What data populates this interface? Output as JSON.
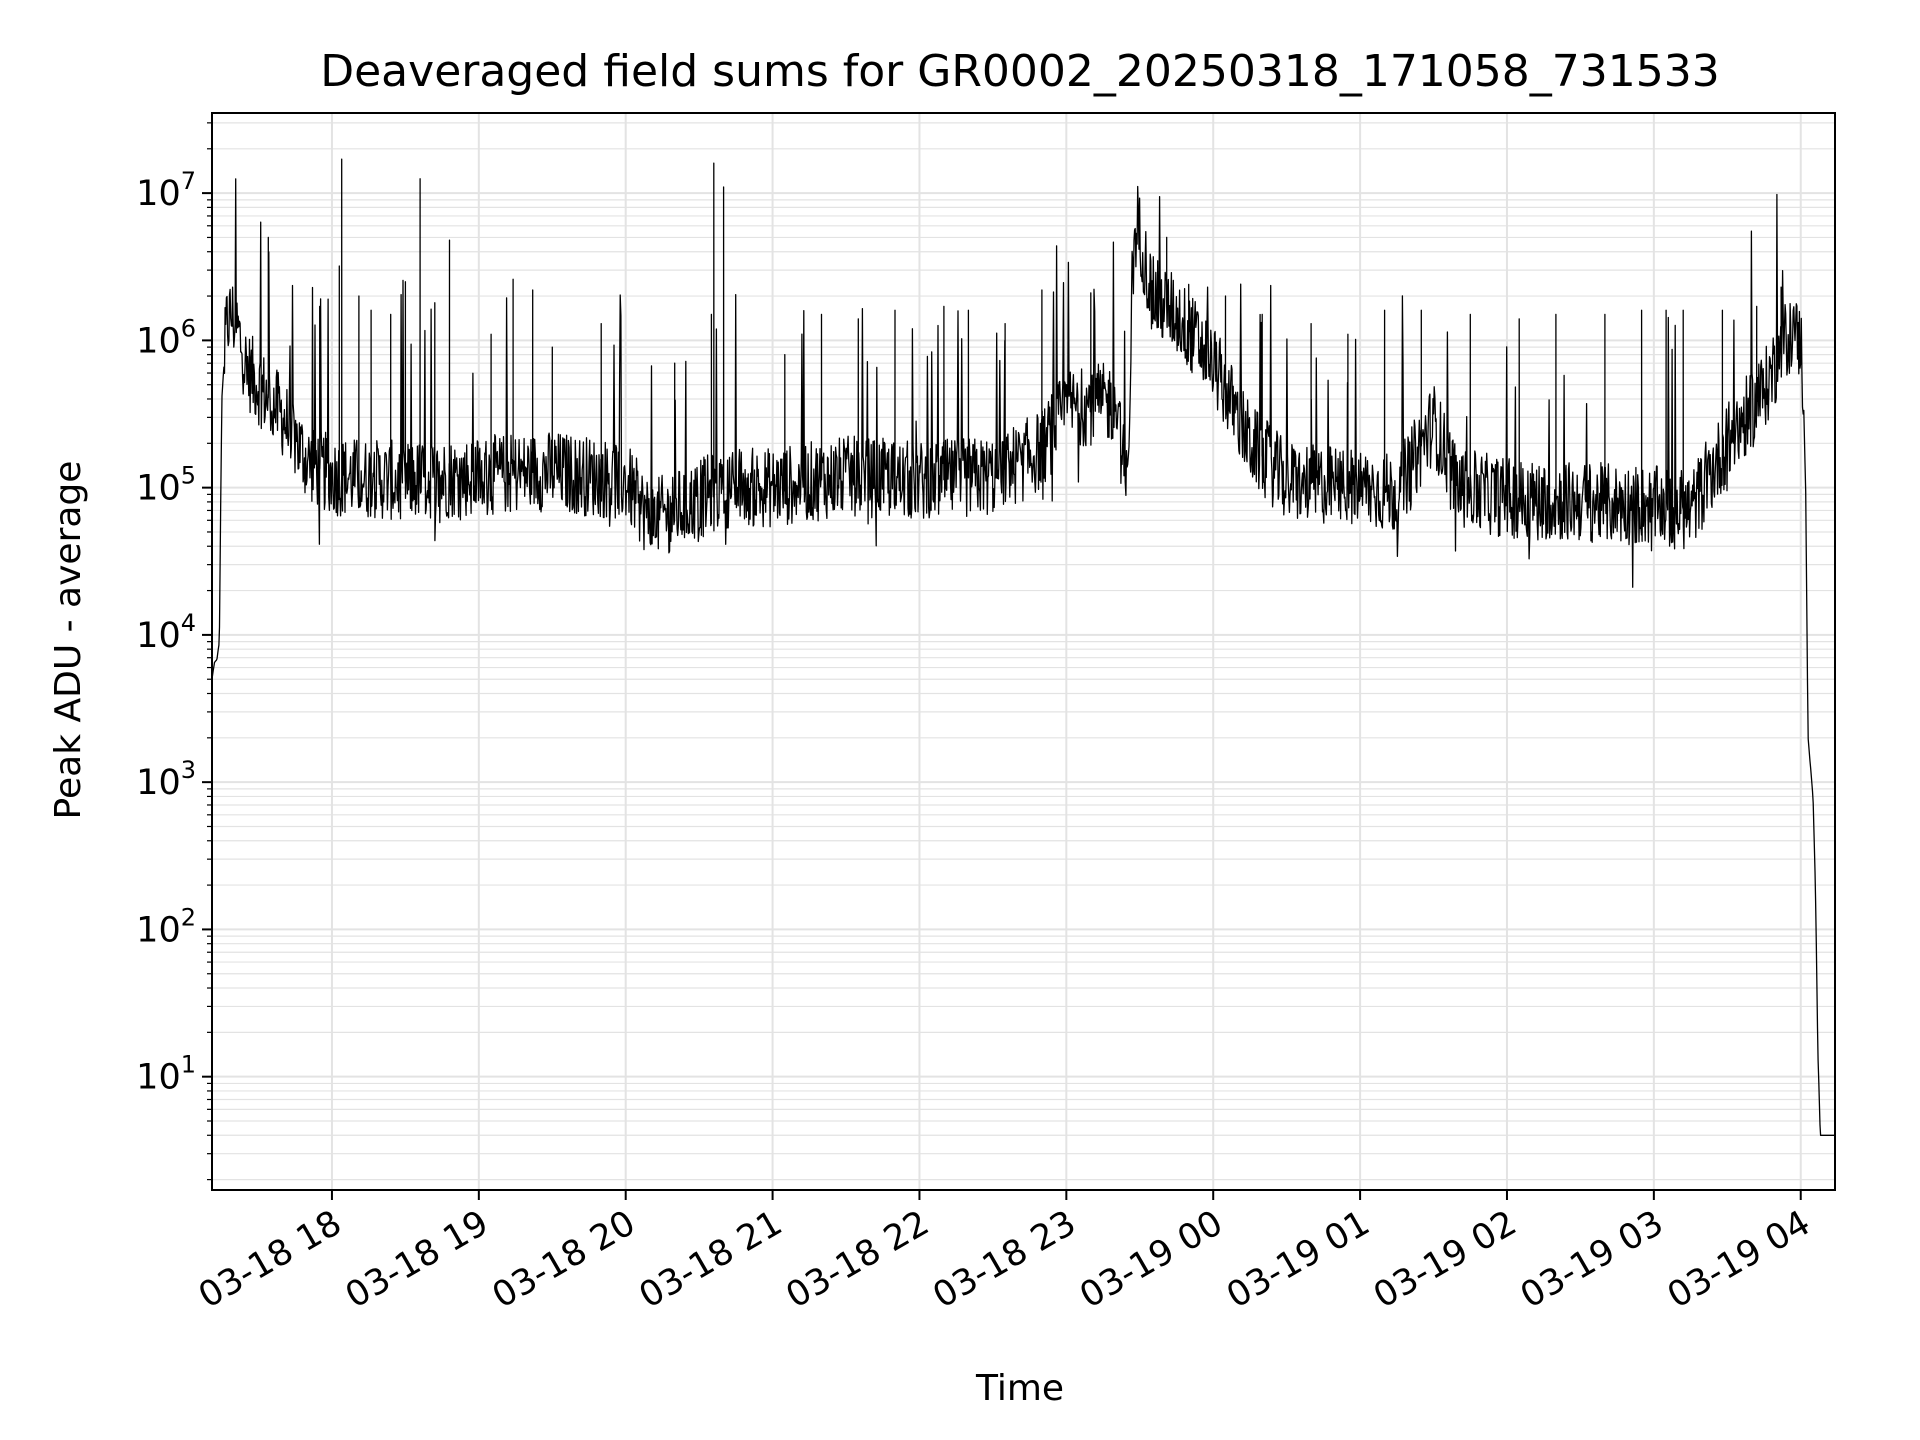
{
  "chart_data": {
    "type": "line",
    "title": "Deaveraged field sums for GR0002_20250318_171058_731533",
    "xlabel": "Time",
    "ylabel": "Peak ADU - average",
    "yscale": "log",
    "ylim": [
      1.7,
      35000000
    ],
    "xlim": [
      "2025-03-18 17:11",
      "2025-03-19 04:14"
    ],
    "grid": true,
    "line_color": "#000000",
    "grid_color": "#e3e3e3",
    "x_ticks": [
      {
        "t": "2025-03-18 18:00",
        "label": "03-18 18"
      },
      {
        "t": "2025-03-18 19:00",
        "label": "03-18 19"
      },
      {
        "t": "2025-03-18 20:00",
        "label": "03-18 20"
      },
      {
        "t": "2025-03-18 21:00",
        "label": "03-18 21"
      },
      {
        "t": "2025-03-18 22:00",
        "label": "03-18 22"
      },
      {
        "t": "2025-03-18 23:00",
        "label": "03-18 23"
      },
      {
        "t": "2025-03-19 00:00",
        "label": "03-19 00"
      },
      {
        "t": "2025-03-19 01:00",
        "label": "03-19 01"
      },
      {
        "t": "2025-03-19 02:00",
        "label": "03-19 02"
      },
      {
        "t": "2025-03-19 03:00",
        "label": "03-19 03"
      },
      {
        "t": "2025-03-19 04:00",
        "label": "03-19 04"
      }
    ],
    "y_ticks": [
      {
        "value": 10,
        "base": "10",
        "exp": "1"
      },
      {
        "value": 100,
        "base": "10",
        "exp": "2"
      },
      {
        "value": 1000,
        "base": "10",
        "exp": "3"
      },
      {
        "value": 10000,
        "base": "10",
        "exp": "4"
      },
      {
        "value": 100000,
        "base": "10",
        "exp": "5"
      },
      {
        "value": 1000000,
        "base": "10",
        "exp": "6"
      },
      {
        "value": 10000000,
        "base": "10",
        "exp": "7"
      }
    ],
    "series": [
      {
        "baseline": [
          [
            "2025-03-18 17:11",
            5000
          ],
          [
            "2025-03-18 17:12",
            6500
          ],
          [
            "2025-03-18 17:13",
            6800
          ],
          [
            "2025-03-18 17:14",
            9000
          ],
          [
            "2025-03-18 17:15",
            400000
          ],
          [
            "2025-03-18 17:17",
            1300000
          ],
          [
            "2025-03-18 17:19",
            1500000
          ],
          [
            "2025-03-18 17:22",
            1100000
          ],
          [
            "2025-03-18 17:25",
            650000
          ],
          [
            "2025-03-18 17:30",
            500000
          ],
          [
            "2025-03-18 17:40",
            300000
          ],
          [
            "2025-03-18 17:50",
            150000
          ],
          [
            "2025-03-18 18:00",
            120000
          ],
          [
            "2025-03-18 18:30",
            110000
          ],
          [
            "2025-03-18 19:00",
            120000
          ],
          [
            "2025-03-18 19:30",
            130000
          ],
          [
            "2025-03-18 20:00",
            110000
          ],
          [
            "2025-03-18 20:10",
            60000
          ],
          [
            "2025-03-18 20:20",
            70000
          ],
          [
            "2025-03-18 20:40",
            100000
          ],
          [
            "2025-03-18 21:00",
            100000
          ],
          [
            "2025-03-18 21:30",
            120000
          ],
          [
            "2025-03-18 22:00",
            110000
          ],
          [
            "2025-03-18 22:30",
            120000
          ],
          [
            "2025-03-18 22:50",
            180000
          ],
          [
            "2025-03-18 23:00",
            350000
          ],
          [
            "2025-03-18 23:20",
            380000
          ],
          [
            "2025-03-18 23:25",
            90000
          ],
          [
            "2025-03-18 23:27",
            3000000
          ],
          [
            "2025-03-18 23:29",
            6500000
          ],
          [
            "2025-03-18 23:35",
            2000000
          ],
          [
            "2025-03-18 23:45",
            1500000
          ],
          [
            "2025-03-19 00:00",
            700000
          ],
          [
            "2025-03-19 00:15",
            200000
          ],
          [
            "2025-03-19 00:30",
            110000
          ],
          [
            "2025-03-19 01:00",
            100000
          ],
          [
            "2025-03-19 01:15",
            90000
          ],
          [
            "2025-03-19 01:30",
            280000
          ],
          [
            "2025-03-19 01:40",
            100000
          ],
          [
            "2025-03-19 02:00",
            85000
          ],
          [
            "2025-03-19 02:30",
            80000
          ],
          [
            "2025-03-19 03:00",
            75000
          ],
          [
            "2025-03-19 03:15",
            70000
          ],
          [
            "2025-03-19 03:30",
            200000
          ],
          [
            "2025-03-19 03:45",
            450000
          ],
          [
            "2025-03-19 03:55",
            1100000
          ],
          [
            "2025-03-19 04:00",
            1000000
          ],
          [
            "2025-03-19 04:01",
            500000
          ],
          [
            "2025-03-19 04:02",
            100000
          ],
          [
            "2025-03-19 04:03",
            2000
          ],
          [
            "2025-03-19 04:05",
            800
          ],
          [
            "2025-03-19 04:06",
            200
          ],
          [
            "2025-03-19 04:07",
            15
          ],
          [
            "2025-03-19 04:08",
            4
          ],
          [
            "2025-03-19 04:14",
            4
          ]
        ],
        "spikes": [
          [
            "2025-03-18 17:34",
            5000000
          ],
          [
            "2025-03-18 17:55",
            1700000
          ],
          [
            "2025-03-18 18:03",
            3200000
          ],
          [
            "2025-03-18 18:04",
            17000000
          ],
          [
            "2025-03-18 18:11",
            2000000
          ],
          [
            "2025-03-18 18:16",
            1600000
          ],
          [
            "2025-03-18 18:24",
            1500000
          ],
          [
            "2025-03-18 18:30",
            2500000
          ],
          [
            "2025-03-18 18:36",
            12500000
          ],
          [
            "2025-03-18 18:42",
            1800000
          ],
          [
            "2025-03-18 18:48",
            4800000
          ],
          [
            "2025-03-18 19:05",
            1100000
          ],
          [
            "2025-03-18 19:14",
            2600000
          ],
          [
            "2025-03-18 19:22",
            2200000
          ],
          [
            "2025-03-18 19:30",
            900000
          ],
          [
            "2025-03-18 19:50",
            1300000
          ],
          [
            "2025-03-18 20:20",
            700000
          ],
          [
            "2025-03-18 20:35",
            1500000
          ],
          [
            "2025-03-18 20:36",
            16000000
          ],
          [
            "2025-03-18 20:40",
            11000000
          ],
          [
            "2025-03-18 21:05",
            800000
          ],
          [
            "2025-03-18 21:20",
            1500000
          ],
          [
            "2025-03-18 21:35",
            1400000
          ],
          [
            "2025-03-18 21:50",
            1600000
          ],
          [
            "2025-03-18 22:10",
            1700000
          ],
          [
            "2025-03-18 22:20",
            1600000
          ],
          [
            "2025-03-18 22:35",
            1300000
          ],
          [
            "2025-03-18 22:50",
            2200000
          ],
          [
            "2025-03-18 23:10",
            2100000
          ],
          [
            "2025-03-18 23:41",
            5000000
          ],
          [
            "2025-03-18 23:50",
            2400000
          ],
          [
            "2025-03-19 00:05",
            2000000
          ],
          [
            "2025-03-19 00:20",
            1500000
          ],
          [
            "2025-03-19 00:40",
            1300000
          ],
          [
            "2025-03-19 00:55",
            1100000
          ],
          [
            "2025-03-19 01:10",
            1600000
          ],
          [
            "2025-03-19 01:25",
            1600000
          ],
          [
            "2025-03-19 01:45",
            1500000
          ],
          [
            "2025-03-19 02:05",
            1400000
          ],
          [
            "2025-03-19 02:20",
            1500000
          ],
          [
            "2025-03-19 02:40",
            1500000
          ],
          [
            "2025-03-19 02:55",
            1600000
          ],
          [
            "2025-03-19 03:05",
            1600000
          ],
          [
            "2025-03-19 03:12",
            1600000
          ],
          [
            "2025-03-19 03:28",
            1600000
          ],
          [
            "2025-03-19 03:42",
            1700000
          ],
          [
            "2025-03-19 03:52",
            2300000
          ]
        ]
      }
    ]
  }
}
